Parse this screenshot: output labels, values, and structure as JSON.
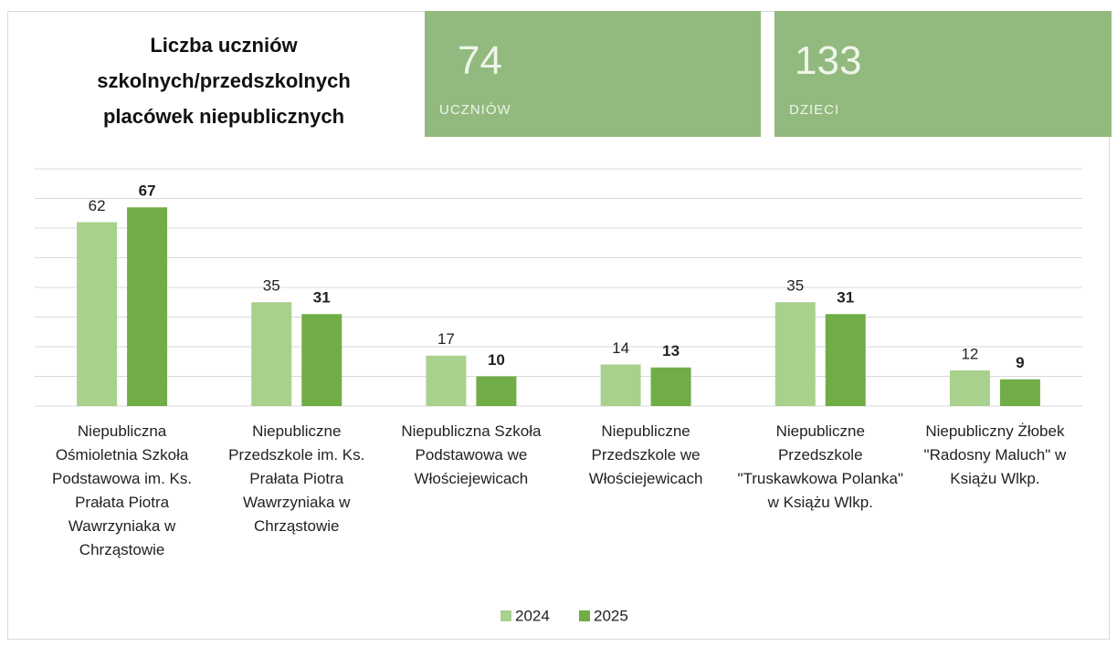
{
  "chart_data": {
    "type": "bar",
    "title": "Liczba uczniów szkolnych/przedszkolnych placówek niepublicznych",
    "badges": [
      {
        "value": 74,
        "label": "UCZNIÓW"
      },
      {
        "value": 133,
        "label": "DZIECI"
      }
    ],
    "categories": [
      "Niepubliczna Ośmioletnia Szkoła Podstawowa im. Ks. Prałata Piotra Wawrzyniaka w Chrząstowie",
      "Niepubliczne Przedszkole im. Ks. Prałata Piotra Wawrzyniaka w Chrząstowie",
      "Niepubliczna Szkoła Podstawowa we Włościejewicach",
      "Niepubliczne Przedszkole we Włościejewicach",
      "Niepubliczne Przedszkole \"Truskawkowa Polanka\" w Książu Wlkp.",
      "Niepubliczny Żłobek \"Radosny Maluch\" w Książu Wlkp."
    ],
    "series": [
      {
        "name": "2024",
        "color": "#a9d18e",
        "values": [
          62,
          35,
          17,
          14,
          35,
          12
        ]
      },
      {
        "name": "2025",
        "color": "#70ad47",
        "values": [
          67,
          31,
          10,
          13,
          31,
          9
        ]
      }
    ],
    "ylim": [
      0,
      80
    ],
    "yticks": [
      0,
      10,
      20,
      30,
      40,
      50,
      60,
      70,
      80
    ],
    "grid": true,
    "legend": "bottom"
  }
}
